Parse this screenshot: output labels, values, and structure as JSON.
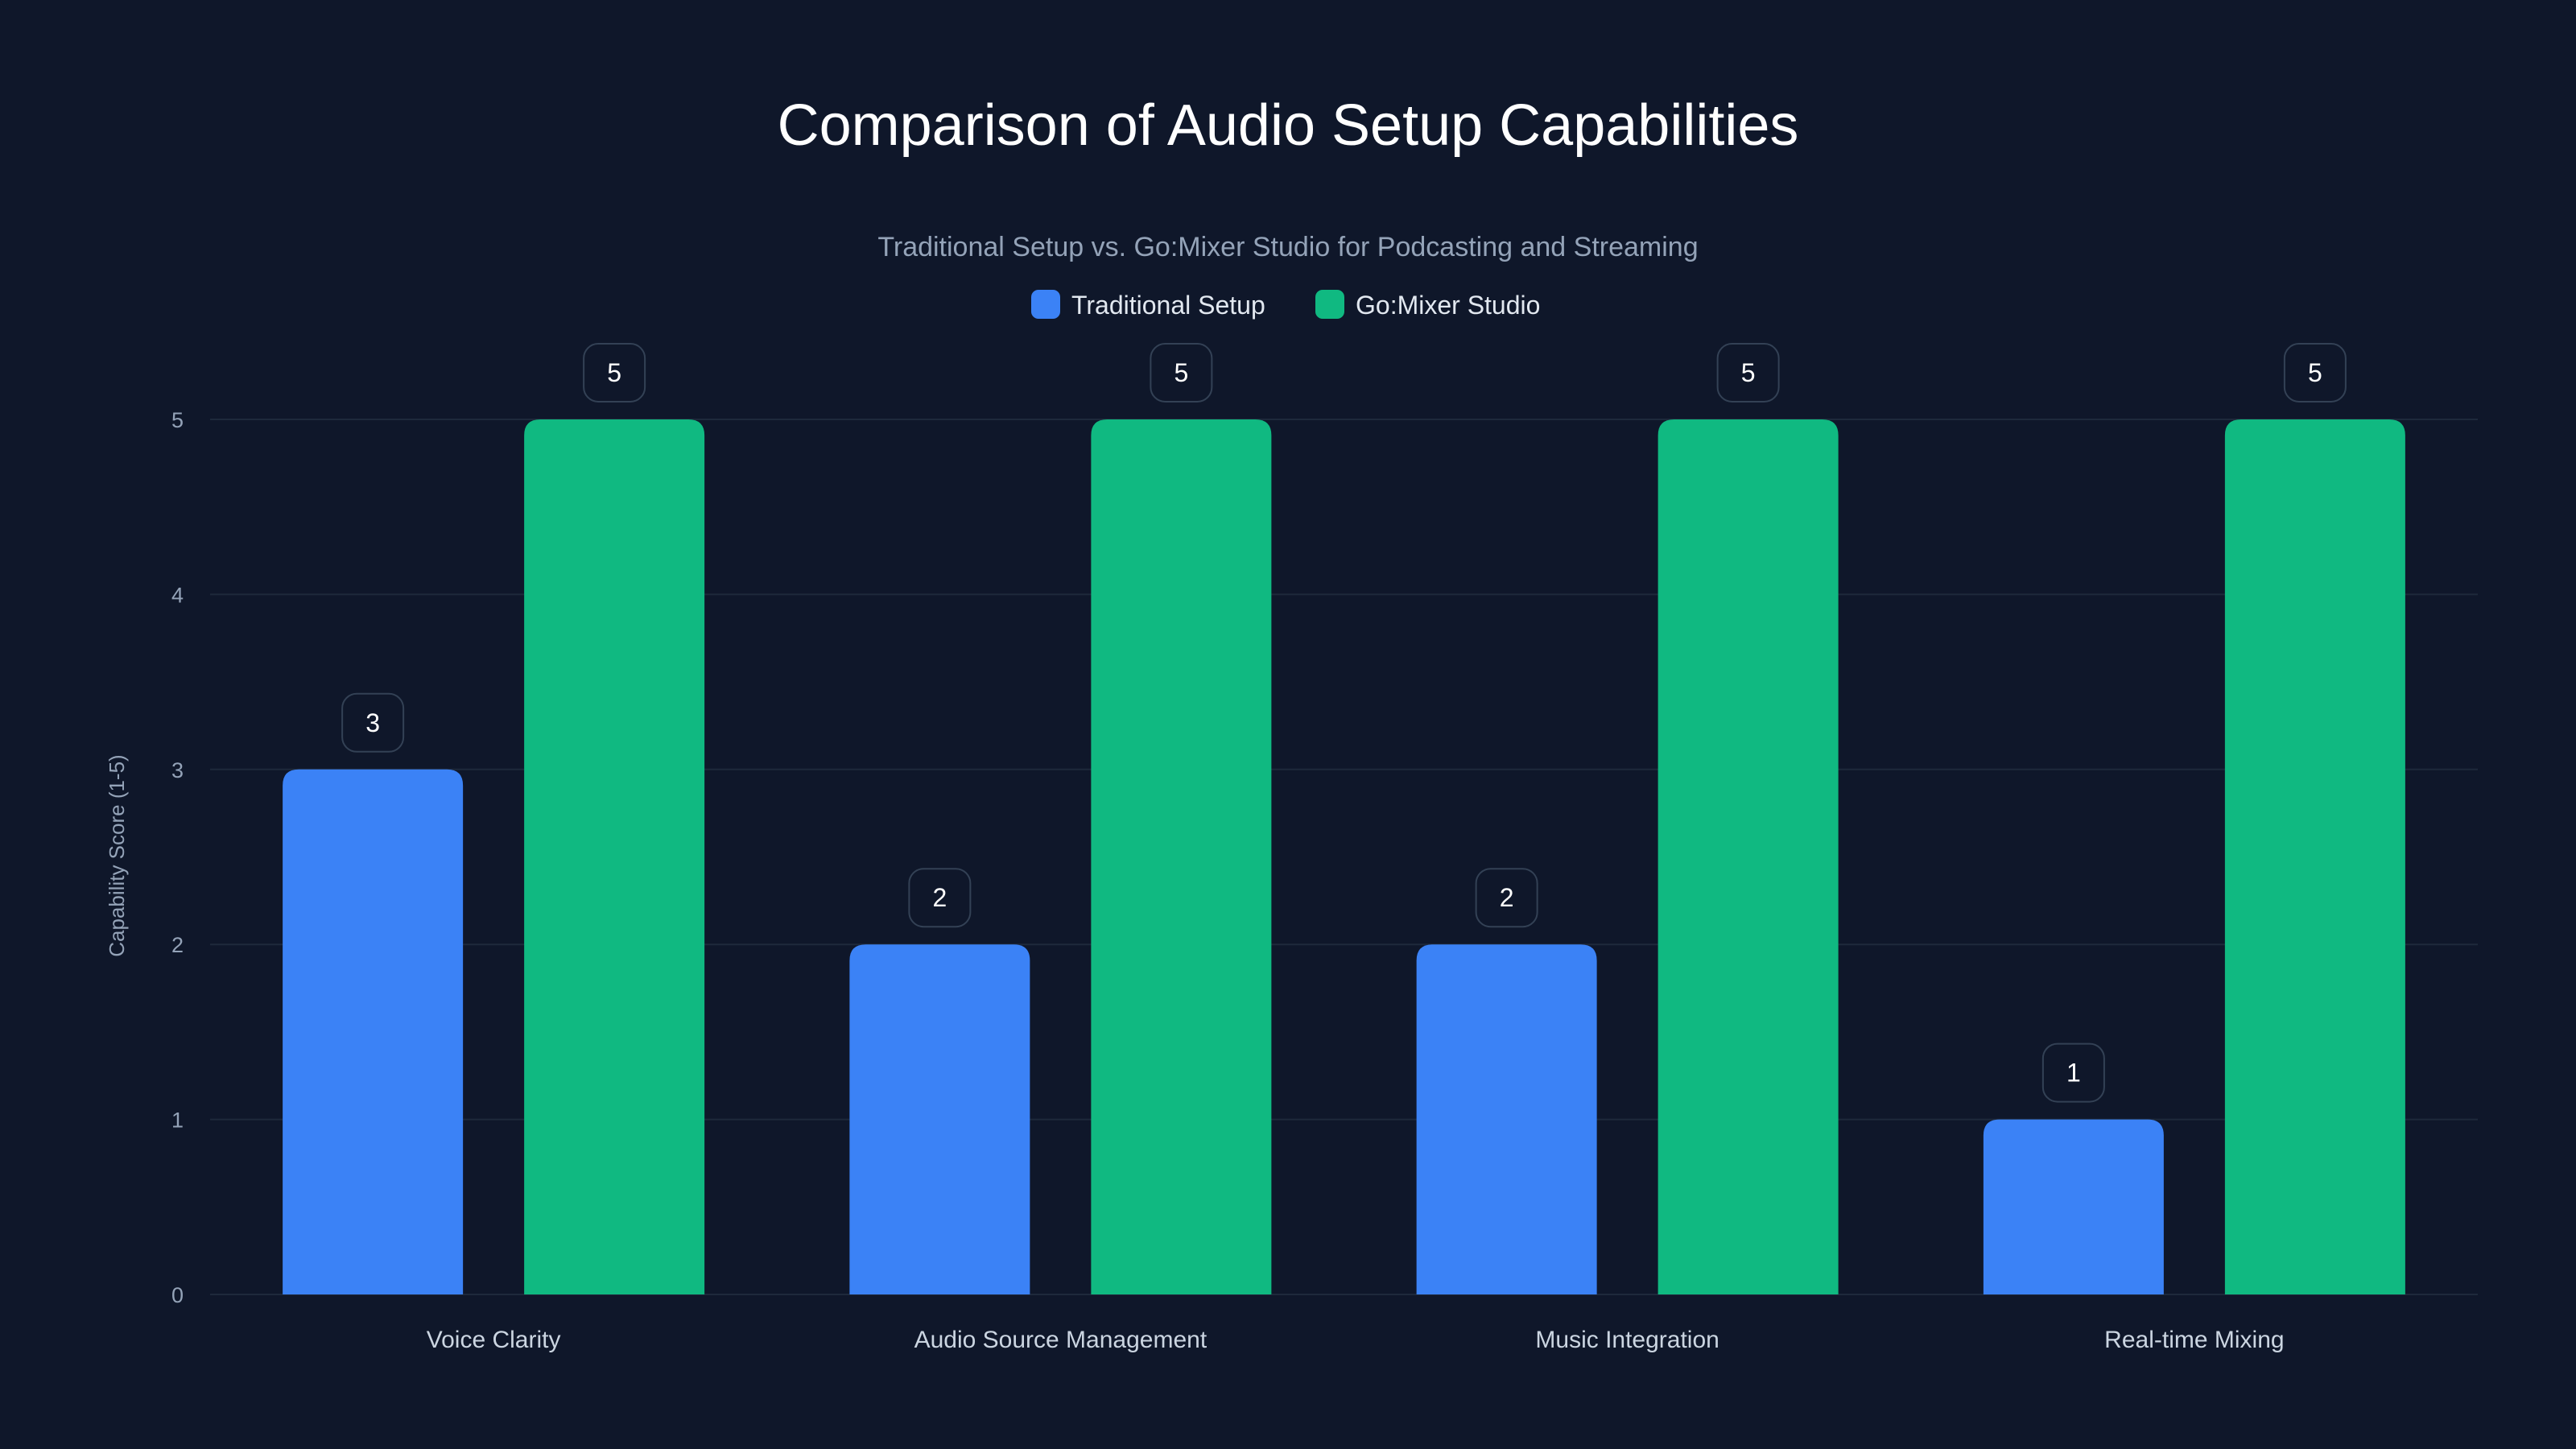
{
  "chart_data": {
    "type": "bar",
    "title": "Comparison of Audio Setup Capabilities",
    "subtitle": "Traditional Setup vs. Go:Mixer Studio for Podcasting and Streaming",
    "xlabel": "",
    "ylabel": "Capability Score (1-5)",
    "ylim": [
      0,
      5
    ],
    "yticks": [
      "0",
      "1",
      "2",
      "3",
      "4",
      "5"
    ],
    "grid": true,
    "legend_position": "top-center",
    "categories": [
      "Voice Clarity",
      "Audio Source Management",
      "Music Integration",
      "Real-time Mixing"
    ],
    "series": [
      {
        "name": "Traditional Setup",
        "color": "#3b82f6",
        "values": [
          3,
          2,
          2,
          1
        ]
      },
      {
        "name": "Go:Mixer Studio",
        "color": "#10b981",
        "values": [
          5,
          5,
          5,
          5
        ]
      }
    ]
  }
}
